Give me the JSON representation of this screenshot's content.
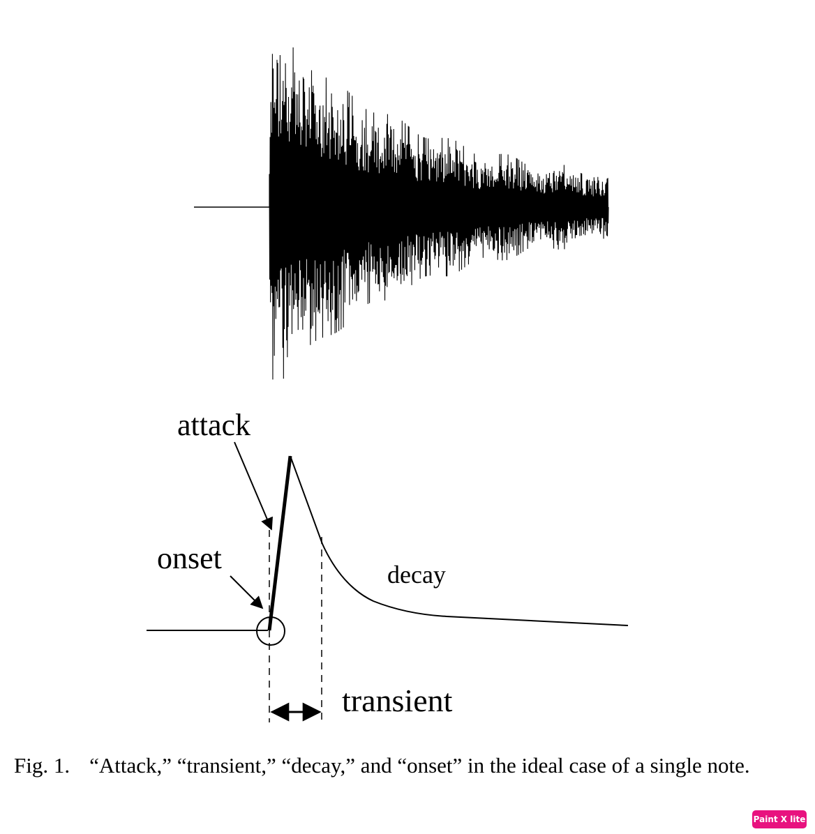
{
  "figure": {
    "labels": {
      "attack": "attack",
      "onset": "onset",
      "decay": "decay",
      "transient": "transient"
    },
    "line_color": "#000000"
  },
  "caption": {
    "number": "Fig. 1.",
    "text": "“Attack,” “transient,” “decay,” and “onset” in the ideal case of a single note."
  },
  "badge": {
    "text": "Paint X lite",
    "color": "#e8127f"
  }
}
